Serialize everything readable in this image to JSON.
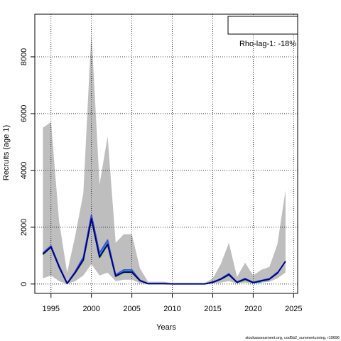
{
  "chart_data": {
    "type": "line",
    "xlabel": "Years",
    "ylabel": "Recruits (age 1)",
    "xlim": [
      1993,
      2025.5
    ],
    "ylim": [
      -330,
      9500
    ],
    "x_ticks": [
      1995,
      2000,
      2005,
      2010,
      2015,
      2020,
      2025
    ],
    "y_ticks": [
      0,
      2000,
      4000,
      6000,
      8000
    ],
    "grid": true,
    "legend": {
      "text": "Rho-lag-1: -18%",
      "position": "top-right"
    },
    "colors": {
      "band": "#bebebe",
      "peels": [
        "#00008b",
        "#3a4ec8",
        "#2a9ad0",
        "#3ab0b0",
        "#5cbf56",
        "#9dc23a"
      ]
    },
    "band": {
      "x": [
        1994,
        1995,
        1996,
        1997,
        1998,
        1999,
        2000,
        2001,
        2002,
        2003,
        2004,
        2005,
        2006,
        2007,
        2008,
        2009,
        2010,
        2011,
        2012,
        2013,
        2014,
        2015,
        2016,
        2017,
        2018,
        2019,
        2020,
        2021,
        2022,
        2023,
        2024
      ],
      "upper": [
        5500,
        5700,
        2200,
        400,
        1700,
        3200,
        8900,
        3500,
        5200,
        1450,
        1750,
        1750,
        550,
        80,
        80,
        80,
        30,
        30,
        30,
        30,
        30,
        200,
        700,
        1450,
        250,
        750,
        300,
        500,
        600,
        1400,
        3300
      ],
      "lower": [
        200,
        300,
        100,
        0,
        100,
        300,
        700,
        300,
        400,
        100,
        150,
        150,
        30,
        0,
        0,
        0,
        0,
        0,
        0,
        0,
        0,
        20,
        50,
        100,
        20,
        50,
        20,
        50,
        80,
        200,
        400
      ]
    },
    "series": [
      {
        "x": [
          1994,
          1995,
          1996,
          1997,
          1998,
          1999,
          2000,
          2001,
          2002,
          2003,
          2004,
          2005,
          2006,
          2007,
          2008,
          2009,
          2010,
          2011,
          2012,
          2013,
          2014,
          2015,
          2016,
          2017,
          2018,
          2019,
          2020,
          2021,
          2022,
          2023,
          2024
        ],
        "values": [
          1050,
          1300,
          600,
          20,
          400,
          850,
          2300,
          950,
          1400,
          280,
          420,
          420,
          120,
          12,
          12,
          12,
          5,
          5,
          5,
          5,
          5,
          60,
          170,
          330,
          60,
          170,
          50,
          110,
          170,
          380,
          800
        ]
      },
      {
        "x": [
          1994,
          1995,
          1996,
          1997,
          1998,
          1999,
          2000,
          2001,
          2002,
          2003,
          2004,
          2005,
          2006,
          2007,
          2008,
          2009,
          2010,
          2011,
          2012,
          2013,
          2014,
          2015,
          2016,
          2017,
          2018,
          2019,
          2020,
          2021,
          2022,
          2023
        ],
        "values": [
          1100,
          1350,
          650,
          25,
          450,
          950,
          2450,
          1100,
          1550,
          330,
          500,
          500,
          140,
          15,
          15,
          15,
          6,
          6,
          6,
          6,
          6,
          70,
          190,
          370,
          70,
          200,
          60,
          130,
          190,
          420
        ]
      },
      {
        "x": [
          1994,
          1995,
          1996,
          1997,
          1998,
          1999,
          2000,
          2001,
          2002,
          2003,
          2004,
          2005,
          2006,
          2007,
          2008,
          2009,
          2010,
          2011,
          2012,
          2013,
          2014,
          2015,
          2016,
          2017,
          2018,
          2019,
          2020,
          2021,
          2022
        ],
        "values": [
          1080,
          1330,
          630,
          22,
          430,
          900,
          2380,
          1050,
          1500,
          310,
          480,
          480,
          130,
          14,
          14,
          14,
          6,
          6,
          6,
          6,
          6,
          65,
          180,
          350,
          65,
          190,
          55,
          110,
          150
        ]
      },
      {
        "x": [
          1994,
          1995,
          1996,
          1997,
          1998,
          1999,
          2000,
          2001,
          2002,
          2003,
          2004,
          2005,
          2006,
          2007,
          2008,
          2009,
          2010,
          2011,
          2012,
          2013,
          2014,
          2015,
          2016,
          2017,
          2018,
          2019,
          2020,
          2021
        ],
        "values": [
          1060,
          1310,
          610,
          20,
          410,
          860,
          2320,
          980,
          1430,
          290,
          440,
          440,
          125,
          13,
          13,
          13,
          5,
          5,
          5,
          5,
          5,
          62,
          175,
          340,
          62,
          180,
          40,
          60
        ]
      },
      {
        "x": [
          1994,
          1995,
          1996,
          1997,
          1998,
          1999,
          2000,
          2001,
          2002,
          2003,
          2004,
          2005,
          2006,
          2007,
          2008,
          2009,
          2010,
          2011,
          2012,
          2013,
          2014,
          2015,
          2016,
          2017,
          2018,
          2019,
          2020
        ],
        "values": [
          1040,
          1290,
          590,
          18,
          390,
          830,
          2270,
          930,
          1380,
          270,
          410,
          410,
          115,
          12,
          12,
          12,
          5,
          5,
          5,
          5,
          5,
          58,
          165,
          320,
          58,
          150,
          30
        ]
      },
      {
        "x": [
          1994,
          1995,
          1996,
          1997,
          1998,
          1999,
          2000,
          2001,
          2002,
          2003,
          2004,
          2005,
          2006,
          2007,
          2008,
          2009,
          2010,
          2011,
          2012,
          2013,
          2014,
          2015,
          2016,
          2017,
          2018,
          2019
        ],
        "values": [
          1020,
          1270,
          570,
          16,
          370,
          800,
          2220,
          900,
          1350,
          250,
          390,
          390,
          110,
          11,
          11,
          11,
          4,
          4,
          4,
          4,
          4,
          55,
          160,
          300,
          55,
          120
        ]
      }
    ]
  },
  "footer": {
    "text": "stockassessment.org, cod5b2_summerturning, r19696"
  }
}
